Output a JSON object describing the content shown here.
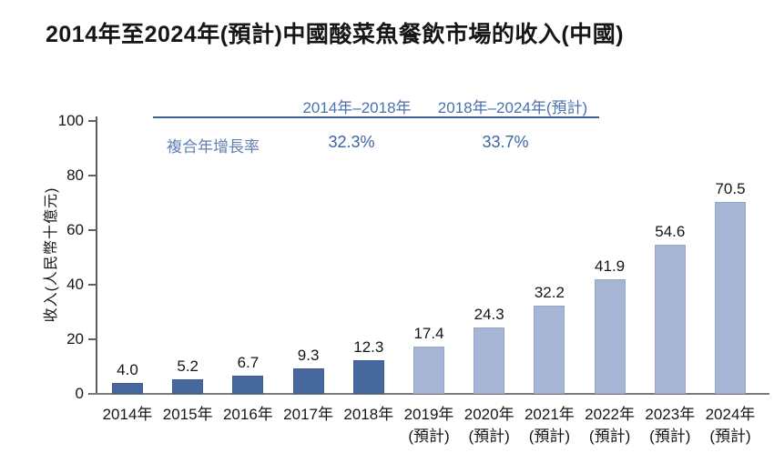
{
  "title": "2014年至2024年(預計)中國酸菜魚餐飲市場的收入(中國)",
  "annotation": {
    "period1_label": "2014年–2018年",
    "period2_label": "2018年–2024年(預計)",
    "cagr_label": "複合年增長率",
    "cagr_period1": "32.3%",
    "cagr_period2": "33.7%"
  },
  "chart_data": {
    "type": "bar",
    "title": "2014年至2024年(預計)中國酸菜魚餐飲市場的收入(中國)",
    "xlabel": "",
    "ylabel": "收入(人民幣十億元)",
    "ylim": [
      0,
      100
    ],
    "yticks": [
      0,
      20,
      40,
      60,
      80,
      100
    ],
    "grid": false,
    "legend_position": "none",
    "categories": [
      "2014年",
      "2015年",
      "2016年",
      "2017年",
      "2018年",
      "2019年",
      "2020年",
      "2021年",
      "2022年",
      "2023年",
      "2024年"
    ],
    "category_sublabels": [
      "",
      "",
      "",
      "",
      "",
      "(預計)",
      "(預計)",
      "(預計)",
      "(預計)",
      "(預計)",
      "(預計)"
    ],
    "values": [
      4.0,
      5.2,
      6.7,
      9.3,
      12.3,
      17.4,
      24.3,
      32.2,
      41.9,
      54.6,
      70.5
    ],
    "value_labels": [
      "4.0",
      "5.2",
      "6.7",
      "9.3",
      "12.3",
      "17.4",
      "24.3",
      "32.2",
      "41.9",
      "54.6",
      "70.5"
    ],
    "historical_count": 5,
    "series_note": "2014-2018 actual (dark blue), 2019-2024 forecast (light blue)"
  },
  "colors": {
    "bar_historical": "#47689c",
    "bar_historical_border": "#3d5d91",
    "bar_forecast": "#a6b5d3",
    "bar_forecast_border": "#94a7ca",
    "annotation_header": "#4a72ae",
    "annotation_value": "#3c64a4",
    "annotation_label": "#6080b4",
    "annotation_rule": "#3e5f9c",
    "axis": "#5f5f5f",
    "baseline": "#7a7a7a",
    "text": "#161616"
  }
}
